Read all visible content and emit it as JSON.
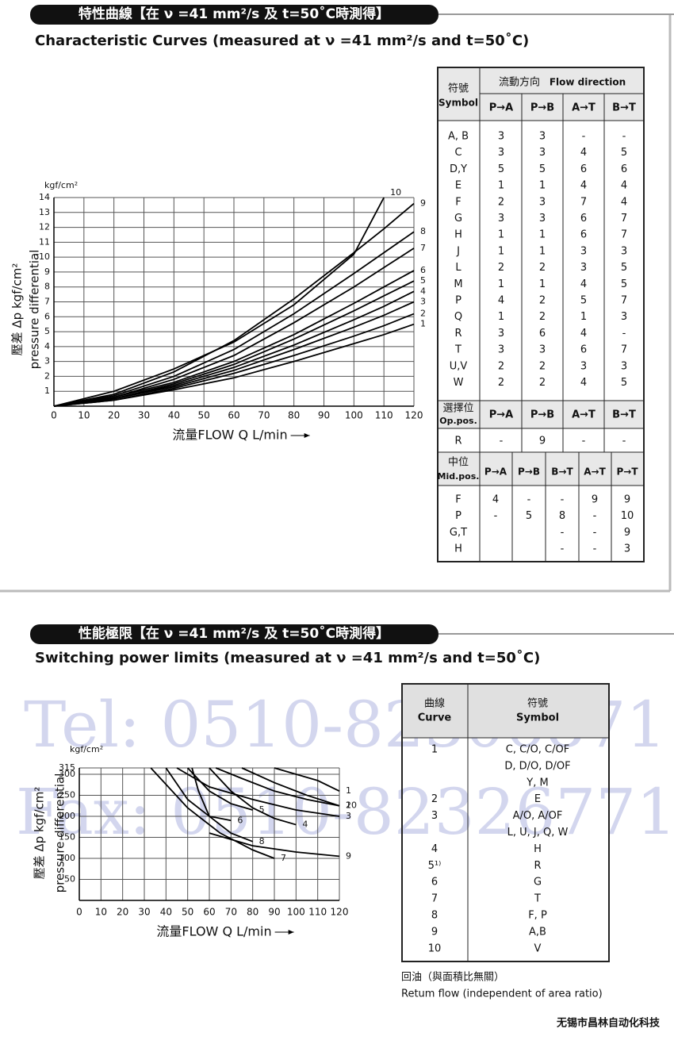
{
  "sections": [
    {
      "title": "特性曲線【在 ν =41 mm²/s 及 t=50˚C時測得】",
      "subtitle": "Characteristic Curves (measured at ν =41 mm²/s and t=50˚C)"
    },
    {
      "title": "性能極限【在 ν =41 mm²/s 及 t=50˚C時測得】",
      "subtitle": "Switching power limits (measured at ν =41 mm²/s and t=50˚C)"
    }
  ],
  "chart_data": [
    {
      "type": "line",
      "y_unit": "kgf/cm²",
      "ylabel": [
        "壓差 Δp kgf/cm²",
        "pressure differential"
      ],
      "xlabel": "流量FLOW Q L/min",
      "x": [
        0,
        20,
        40,
        60,
        80,
        100,
        110,
        120
      ],
      "xlim": [
        0,
        120
      ],
      "xticks": [
        0,
        10,
        20,
        30,
        40,
        50,
        60,
        70,
        80,
        90,
        100,
        110,
        120
      ],
      "ylim": [
        0,
        14
      ],
      "yticks": [
        1,
        2,
        3,
        4,
        5,
        6,
        7,
        8,
        9,
        10,
        11,
        12,
        13,
        14
      ],
      "grid": true,
      "series": [
        {
          "name": "1",
          "color": "#000000",
          "values": [
            0,
            0.4,
            1.1,
            1.9,
            3.0,
            4.2,
            4.8,
            5.5
          ]
        },
        {
          "name": "2",
          "color": "#000000",
          "values": [
            0,
            0.4,
            1.2,
            2.2,
            3.4,
            4.7,
            5.4,
            6.2
          ]
        },
        {
          "name": "3",
          "color": "#000000",
          "values": [
            0,
            0.5,
            1.3,
            2.4,
            3.8,
            5.3,
            6.1,
            7.0
          ]
        },
        {
          "name": "4",
          "color": "#000000",
          "values": [
            0,
            0.5,
            1.4,
            2.6,
            4.1,
            5.8,
            6.7,
            7.7
          ]
        },
        {
          "name": "5",
          "color": "#000000",
          "values": [
            0,
            0.5,
            1.5,
            2.8,
            4.5,
            6.4,
            7.4,
            8.4
          ]
        },
        {
          "name": "6",
          "color": "#000000",
          "values": [
            0,
            0.6,
            1.6,
            3.0,
            4.8,
            6.9,
            8.0,
            9.1
          ]
        },
        {
          "name": "7",
          "color": "#000000",
          "values": [
            0,
            0.6,
            1.8,
            3.4,
            5.6,
            8.0,
            9.3,
            10.6
          ]
        },
        {
          "name": "8",
          "color": "#000000",
          "values": [
            0,
            0.7,
            2.0,
            3.8,
            6.2,
            8.9,
            10.3,
            11.7
          ]
        },
        {
          "name": "9",
          "color": "#000000",
          "values": [
            0,
            0.8,
            2.3,
            4.4,
            7.2,
            10.3,
            11.9,
            13.6
          ]
        },
        {
          "name": "10",
          "color": "#000000",
          "values": [
            0,
            1.0,
            2.5,
            4.3,
            6.8,
            10.2,
            14,
            null
          ]
        }
      ]
    },
    {
      "type": "line",
      "y_unit": "kgf/cm²",
      "ylabel": [
        "壓差 Δp kgf/cm²",
        "pressure differential"
      ],
      "xlabel": "流量FLOW Q L/min",
      "xlim": [
        0,
        120
      ],
      "xticks": [
        0,
        10,
        20,
        30,
        40,
        50,
        60,
        70,
        80,
        90,
        100,
        110,
        120
      ],
      "ylim": [
        0,
        315
      ],
      "yticks": [
        50,
        100,
        150,
        200,
        250,
        300,
        315
      ],
      "grid": true,
      "series": [
        {
          "name": "1",
          "color": "#000000",
          "x": [
            90,
            100,
            110,
            120
          ],
          "values": [
            315,
            300,
            285,
            260
          ]
        },
        {
          "name": "2",
          "color": "#000000",
          "x": [
            75,
            90,
            105,
            120
          ],
          "values": [
            315,
            280,
            250,
            225
          ]
        },
        {
          "name": "3",
          "color": "#000000",
          "x": [
            45,
            60,
            80,
            100,
            120
          ],
          "values": [
            315,
            270,
            240,
            215,
            200
          ]
        },
        {
          "name": "4",
          "color": "#000000",
          "x": [
            60,
            70,
            80,
            90,
            100
          ],
          "values": [
            315,
            260,
            220,
            195,
            180
          ]
        },
        {
          "name": "5",
          "color": "#000000",
          "x": [
            50,
            60,
            70,
            80
          ],
          "values": [
            315,
            260,
            230,
            215
          ]
        },
        {
          "name": "6",
          "color": "#000000",
          "x": [
            40,
            50,
            60,
            70
          ],
          "values": [
            315,
            240,
            200,
            190
          ]
        },
        {
          "name": "7",
          "color": "#000000",
          "x": [
            33,
            50,
            65,
            80,
            90
          ],
          "values": [
            315,
            220,
            160,
            120,
            100
          ]
        },
        {
          "name": "8",
          "color": "#000000",
          "x": [
            52,
            55,
            60,
            70,
            80
          ],
          "values": [
            315,
            260,
            200,
            160,
            140
          ]
        },
        {
          "name": "9",
          "color": "#000000",
          "x": [
            60,
            80,
            100,
            120
          ],
          "values": [
            160,
            130,
            115,
            105
          ]
        },
        {
          "name": "10",
          "color": "#000000",
          "x": [
            63,
            75,
            90,
            105,
            120
          ],
          "values": [
            315,
            290,
            260,
            240,
            225
          ]
        }
      ]
    }
  ],
  "flow_table": {
    "symbol_header": [
      "符號",
      "Symbol"
    ],
    "flow_header": [
      "流動方向",
      "Flow direction"
    ],
    "columns": [
      "P→A",
      "P→B",
      "A→T",
      "B→T"
    ],
    "rows": [
      [
        "A, B",
        "3",
        "3",
        "-",
        "-"
      ],
      [
        "C",
        "3",
        "3",
        "4",
        "5"
      ],
      [
        "D,Y",
        "5",
        "5",
        "6",
        "6"
      ],
      [
        "E",
        "1",
        "1",
        "4",
        "4"
      ],
      [
        "F",
        "2",
        "3",
        "7",
        "4"
      ],
      [
        "G",
        "3",
        "3",
        "6",
        "7"
      ],
      [
        "H",
        "1",
        "1",
        "6",
        "7"
      ],
      [
        "J",
        "1",
        "1",
        "3",
        "3"
      ],
      [
        "L",
        "2",
        "2",
        "3",
        "5"
      ],
      [
        "M",
        "1",
        "1",
        "4",
        "5"
      ],
      [
        "P",
        "4",
        "2",
        "5",
        "7"
      ],
      [
        "Q",
        "1",
        "2",
        "1",
        "3"
      ],
      [
        "R",
        "3",
        "6",
        "4",
        "-"
      ],
      [
        "T",
        "3",
        "3",
        "6",
        "7"
      ],
      [
        "U,V",
        "2",
        "2",
        "3",
        "3"
      ],
      [
        "W",
        "2",
        "2",
        "4",
        "5"
      ]
    ],
    "op_header": [
      "選擇位",
      "Op.pos."
    ],
    "op_columns": [
      "P→A",
      "P→B",
      "A→T",
      "B→T"
    ],
    "op_rows": [
      [
        "R",
        "-",
        "9",
        "-",
        "-"
      ]
    ],
    "mid_header": [
      "中位",
      "Mid.pos."
    ],
    "mid_columns": [
      "P→A",
      "P→B",
      "B→T",
      "A→T",
      "P→T"
    ],
    "mid_rows": [
      [
        "F",
        "4",
        "-",
        "-",
        "9",
        "9"
      ],
      [
        "P",
        "-",
        "5",
        "8",
        "-",
        "10"
      ],
      [
        "G,T",
        null,
        null,
        "-",
        "-",
        "9"
      ],
      [
        "H",
        null,
        null,
        "-",
        "-",
        "3"
      ]
    ]
  },
  "curve_table": {
    "header": [
      [
        "曲線",
        "Curve"
      ],
      [
        "符號",
        "Symbol"
      ]
    ],
    "rows": [
      {
        "curve": "1",
        "symbols": [
          "C, C/O, C/OF",
          "D, D/O, D/OF",
          "Y, M"
        ]
      },
      {
        "curve": "2",
        "symbols": [
          "E"
        ]
      },
      {
        "curve": "3",
        "symbols": [
          "A/O, A/OF",
          "L, U, J, Q, W"
        ]
      },
      {
        "curve": "4",
        "symbols": [
          "H"
        ]
      },
      {
        "curve": "5¹⁾",
        "symbols": [
          "R"
        ]
      },
      {
        "curve": "6",
        "symbols": [
          "G"
        ]
      },
      {
        "curve": "7",
        "symbols": [
          "T"
        ]
      },
      {
        "curve": "8",
        "symbols": [
          "F, P"
        ]
      },
      {
        "curve": "9",
        "symbols": [
          "A,B"
        ]
      },
      {
        "curve": "10",
        "symbols": [
          "V"
        ]
      }
    ]
  },
  "notes": [
    "回油（與面積比無關）",
    "Retum flow (independent of area ratio)"
  ],
  "watermarks": [
    "Tel: 0510-82306871",
    "Fax: 0510-82326771"
  ],
  "footer": "无锡市昌林自动化科技"
}
